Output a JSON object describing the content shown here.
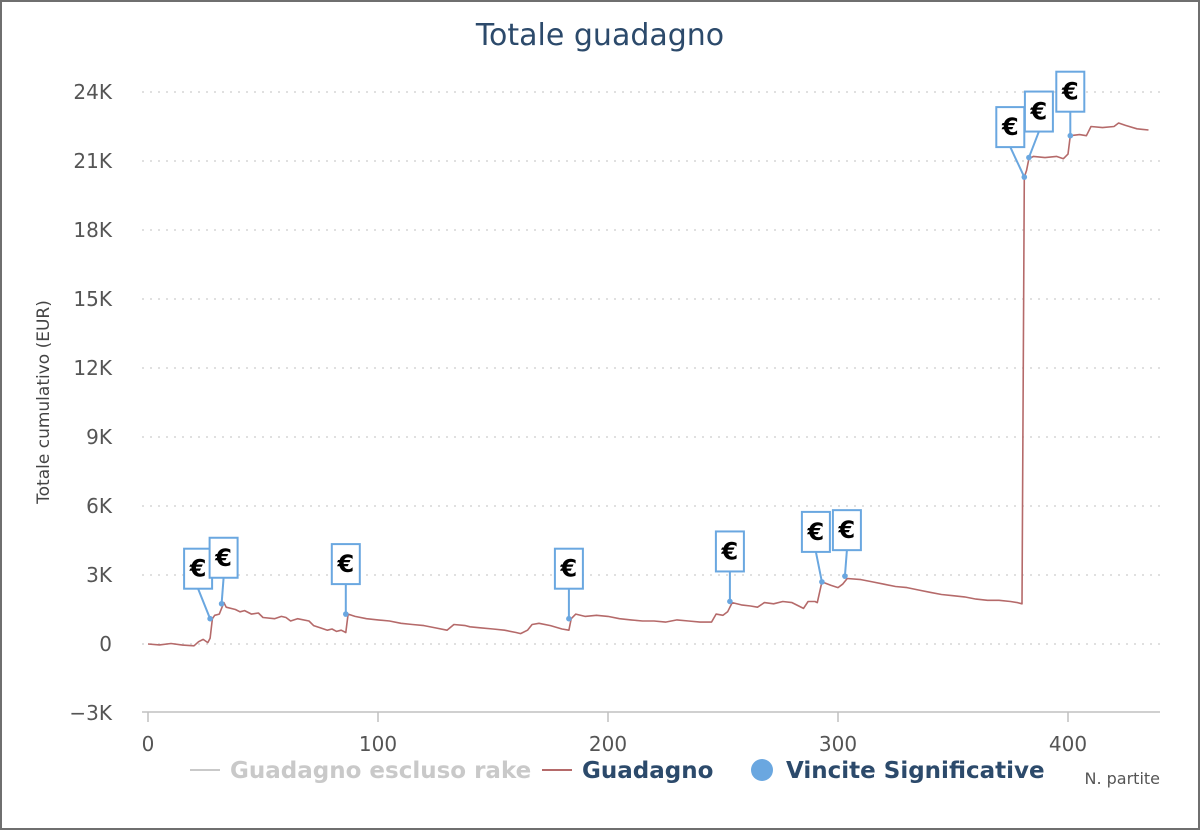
{
  "colors": {
    "title": "#2c4a6b",
    "guadagno": "#b56a6a",
    "rake_hidden": "#c9c9c9",
    "flags": "#6aa7e0",
    "legend_active": "#2c4a6b",
    "legend_inactive": "#c9c9c9"
  },
  "chart_data": {
    "type": "line",
    "title": "Totale guadagno",
    "xlabel": "N. partite",
    "ylabel": "Totale cumulativo (EUR)",
    "xlim": [
      0,
      440
    ],
    "ylim": [
      -3000,
      24000
    ],
    "x_ticks": [
      0,
      100,
      200,
      300,
      400
    ],
    "x_tick_labels": [
      "0",
      "100",
      "200",
      "300",
      "400"
    ],
    "y_ticks": [
      -3000,
      0,
      3000,
      6000,
      9000,
      12000,
      15000,
      18000,
      21000,
      24000
    ],
    "y_tick_labels": [
      "−3K",
      "0",
      "3K",
      "6K",
      "9K",
      "12K",
      "15K",
      "18K",
      "21K",
      "24K"
    ],
    "grid": true,
    "legend_position": "bottom",
    "legend": [
      {
        "label": "Guadagno escluso rake",
        "symbol": "line",
        "state": "hidden"
      },
      {
        "label": "Guadagno",
        "symbol": "line",
        "state": "visible"
      },
      {
        "label": "Vincite Significative",
        "symbol": "circle",
        "state": "visible"
      }
    ],
    "series": [
      {
        "name": "Guadagno",
        "points": [
          [
            0,
            0
          ],
          [
            5,
            -40
          ],
          [
            10,
            20
          ],
          [
            15,
            -50
          ],
          [
            20,
            -80
          ],
          [
            22,
            100
          ],
          [
            24,
            200
          ],
          [
            26,
            60
          ],
          [
            27,
            250
          ],
          [
            28,
            1100
          ],
          [
            29,
            1250
          ],
          [
            31,
            1300
          ],
          [
            33,
            1800
          ],
          [
            34,
            1600
          ],
          [
            38,
            1500
          ],
          [
            40,
            1400
          ],
          [
            42,
            1450
          ],
          [
            45,
            1300
          ],
          [
            48,
            1350
          ],
          [
            50,
            1150
          ],
          [
            55,
            1100
          ],
          [
            58,
            1200
          ],
          [
            60,
            1150
          ],
          [
            62,
            1000
          ],
          [
            65,
            1100
          ],
          [
            70,
            1000
          ],
          [
            72,
            800
          ],
          [
            75,
            700
          ],
          [
            78,
            600
          ],
          [
            80,
            650
          ],
          [
            82,
            550
          ],
          [
            84,
            600
          ],
          [
            86,
            500
          ],
          [
            87,
            1300
          ],
          [
            90,
            1200
          ],
          [
            95,
            1100
          ],
          [
            100,
            1050
          ],
          [
            105,
            1000
          ],
          [
            110,
            900
          ],
          [
            115,
            850
          ],
          [
            120,
            800
          ],
          [
            125,
            700
          ],
          [
            130,
            600
          ],
          [
            133,
            850
          ],
          [
            138,
            800
          ],
          [
            140,
            750
          ],
          [
            145,
            700
          ],
          [
            150,
            650
          ],
          [
            155,
            600
          ],
          [
            160,
            500
          ],
          [
            162,
            450
          ],
          [
            165,
            600
          ],
          [
            167,
            850
          ],
          [
            170,
            900
          ],
          [
            175,
            800
          ],
          [
            180,
            650
          ],
          [
            183,
            600
          ],
          [
            184,
            1100
          ],
          [
            186,
            1300
          ],
          [
            190,
            1200
          ],
          [
            195,
            1250
          ],
          [
            200,
            1200
          ],
          [
            205,
            1100
          ],
          [
            210,
            1050
          ],
          [
            215,
            1000
          ],
          [
            220,
            1000
          ],
          [
            225,
            950
          ],
          [
            230,
            1050
          ],
          [
            235,
            1000
          ],
          [
            240,
            950
          ],
          [
            245,
            950
          ],
          [
            247,
            1300
          ],
          [
            250,
            1250
          ],
          [
            252,
            1400
          ],
          [
            254,
            1800
          ],
          [
            258,
            1700
          ],
          [
            262,
            1650
          ],
          [
            265,
            1600
          ],
          [
            268,
            1800
          ],
          [
            272,
            1750
          ],
          [
            276,
            1850
          ],
          [
            280,
            1800
          ],
          [
            285,
            1550
          ],
          [
            287,
            1850
          ],
          [
            290,
            1850
          ],
          [
            291,
            1800
          ],
          [
            293,
            2700
          ],
          [
            297,
            2550
          ],
          [
            300,
            2450
          ],
          [
            302,
            2600
          ],
          [
            304,
            2850
          ],
          [
            310,
            2800
          ],
          [
            315,
            2700
          ],
          [
            320,
            2600
          ],
          [
            325,
            2500
          ],
          [
            330,
            2450
          ],
          [
            335,
            2350
          ],
          [
            340,
            2250
          ],
          [
            345,
            2150
          ],
          [
            350,
            2100
          ],
          [
            355,
            2050
          ],
          [
            360,
            1950
          ],
          [
            365,
            1900
          ],
          [
            370,
            1900
          ],
          [
            375,
            1850
          ],
          [
            378,
            1800
          ],
          [
            380,
            1750
          ],
          [
            381,
            20300
          ],
          [
            382,
            20600
          ],
          [
            383,
            21100
          ],
          [
            385,
            21200
          ],
          [
            390,
            21150
          ],
          [
            395,
            21200
          ],
          [
            398,
            21100
          ],
          [
            400,
            21300
          ],
          [
            401,
            22100
          ],
          [
            405,
            22150
          ],
          [
            408,
            22100
          ],
          [
            410,
            22500
          ],
          [
            415,
            22450
          ],
          [
            420,
            22500
          ],
          [
            422,
            22650
          ],
          [
            425,
            22550
          ],
          [
            430,
            22400
          ],
          [
            435,
            22350
          ]
        ]
      }
    ],
    "annotations": [
      {
        "x": 27,
        "y": 1100,
        "label": "€"
      },
      {
        "x": 32,
        "y": 1750,
        "label": "€"
      },
      {
        "x": 86,
        "y": 1300,
        "label": "€"
      },
      {
        "x": 183,
        "y": 1100,
        "label": "€"
      },
      {
        "x": 253,
        "y": 1850,
        "label": "€"
      },
      {
        "x": 293,
        "y": 2700,
        "label": "€"
      },
      {
        "x": 303,
        "y": 2950,
        "label": "€"
      },
      {
        "x": 381,
        "y": 20300,
        "label": "€"
      },
      {
        "x": 383,
        "y": 21150,
        "label": "€"
      },
      {
        "x": 401,
        "y": 22100,
        "label": "€"
      }
    ]
  }
}
